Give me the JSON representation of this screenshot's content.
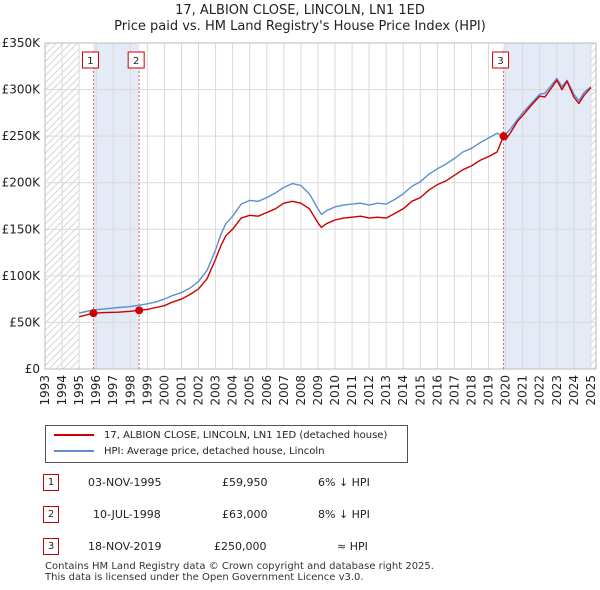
{
  "titles": {
    "line1": "17, ALBION CLOSE, LINCOLN, LN1 1ED",
    "line2": "Price paid vs. HM Land Registry's House Price Index (HPI)"
  },
  "chart_data": {
    "type": "line",
    "title": "17, ALBION CLOSE, LINCOLN, LN1 1ED — Price paid vs. HM Land Registry's House Price Index (HPI)",
    "xlabel": "",
    "ylabel": "",
    "xlim": [
      1993,
      2025
    ],
    "ylim": [
      0,
      350000
    ],
    "x_ticks": [
      1993,
      1994,
      1995,
      1996,
      1997,
      1998,
      1999,
      2000,
      2001,
      2002,
      2003,
      2004,
      2005,
      2006,
      2007,
      2008,
      2009,
      2010,
      2011,
      2012,
      2013,
      2014,
      2015,
      2016,
      2017,
      2018,
      2019,
      2020,
      2021,
      2022,
      2023,
      2024,
      2025
    ],
    "y_ticks": [
      {
        "value": 0,
        "label": "£0"
      },
      {
        "value": 50000,
        "label": "£50K"
      },
      {
        "value": 100000,
        "label": "£100K"
      },
      {
        "value": 150000,
        "label": "£150K"
      },
      {
        "value": 200000,
        "label": "£200K"
      },
      {
        "value": 250000,
        "label": "£250K"
      },
      {
        "value": 300000,
        "label": "£300K"
      },
      {
        "value": 350000,
        "label": "£350K"
      }
    ],
    "grid": true,
    "hatched_ranges": [
      [
        1993,
        1995.0
      ],
      [
        2025.0,
        2025.3
      ]
    ],
    "shaded_ranges": [
      [
        1995.84,
        1998.52
      ],
      [
        2019.88,
        2025.0
      ]
    ],
    "series": [
      {
        "name": "17, ALBION CLOSE, LINCOLN, LN1 1ED (detached house)",
        "color": "#cc0000",
        "x": [
          1995.0,
          1995.84,
          1996.5,
          1997.3,
          1998.0,
          1998.52,
          1999.0,
          1999.5,
          2000.0,
          2000.5,
          2001.0,
          2001.5,
          2002.0,
          2002.5,
          2003.0,
          2003.3,
          2003.6,
          2004.0,
          2004.5,
          2005.0,
          2005.5,
          2006.0,
          2006.5,
          2007.0,
          2007.5,
          2008.0,
          2008.5,
          2009.0,
          2009.2,
          2009.5,
          2010.0,
          2010.5,
          2011.0,
          2011.5,
          2012.0,
          2012.5,
          2013.0,
          2013.5,
          2014.0,
          2014.5,
          2015.0,
          2015.5,
          2016.0,
          2016.5,
          2017.0,
          2017.5,
          2018.0,
          2018.5,
          2019.0,
          2019.5,
          2019.88,
          2020.0,
          2020.3,
          2020.7,
          2021.0,
          2021.5,
          2022.0,
          2022.3,
          2022.7,
          2023.0,
          2023.3,
          2023.6,
          2024.0,
          2024.3,
          2024.6,
          2025.0
        ],
        "y": [
          56000,
          59950,
          60500,
          61000,
          62000,
          63000,
          64000,
          66000,
          68000,
          72000,
          75000,
          80000,
          86000,
          97000,
          118000,
          132000,
          143000,
          150000,
          162000,
          165000,
          164000,
          168000,
          172000,
          178000,
          180000,
          178000,
          172000,
          157000,
          152000,
          156000,
          160000,
          162000,
          163000,
          164000,
          162000,
          163000,
          162000,
          167000,
          172000,
          180000,
          184000,
          192000,
          198000,
          202000,
          208000,
          214000,
          218000,
          224000,
          228000,
          233000,
          250000,
          246000,
          254000,
          266000,
          272000,
          283000,
          293000,
          292000,
          302000,
          310000,
          300000,
          309000,
          292000,
          285000,
          294000,
          302000
        ]
      },
      {
        "name": "HPI: Average price, detached house, Lincoln",
        "color": "#5b8fd4",
        "x": [
          1995.0,
          1995.84,
          1996.5,
          1997.3,
          1998.0,
          1998.52,
          1999.0,
          1999.5,
          2000.0,
          2000.5,
          2001.0,
          2001.5,
          2002.0,
          2002.5,
          2003.0,
          2003.3,
          2003.6,
          2004.0,
          2004.5,
          2005.0,
          2005.5,
          2006.0,
          2006.5,
          2007.0,
          2007.5,
          2008.0,
          2008.5,
          2009.0,
          2009.2,
          2009.5,
          2010.0,
          2010.5,
          2011.0,
          2011.5,
          2012.0,
          2012.5,
          2013.0,
          2013.5,
          2014.0,
          2014.5,
          2015.0,
          2015.5,
          2016.0,
          2016.5,
          2017.0,
          2017.5,
          2018.0,
          2018.5,
          2019.0,
          2019.5,
          2019.88,
          2020.0,
          2020.3,
          2020.7,
          2021.0,
          2021.5,
          2022.0,
          2022.3,
          2022.7,
          2023.0,
          2023.3,
          2023.6,
          2024.0,
          2024.3,
          2024.6,
          2025.0
        ],
        "y": [
          60000,
          63500,
          64500,
          66000,
          67000,
          68500,
          70000,
          72000,
          75000,
          79000,
          82000,
          87000,
          94000,
          106000,
          128000,
          144000,
          156000,
          164000,
          177000,
          181000,
          180000,
          184000,
          189000,
          195000,
          199000,
          197000,
          188000,
          172000,
          166000,
          170000,
          174000,
          176000,
          177000,
          178000,
          176000,
          178000,
          177000,
          182000,
          188000,
          196000,
          201000,
          209000,
          215000,
          220000,
          226000,
          233000,
          237000,
          243000,
          248000,
          253000,
          250000,
          252000,
          258000,
          268000,
          275000,
          285000,
          295000,
          296000,
          305000,
          312000,
          303000,
          310000,
          295000,
          288000,
          297000,
          303000
        ]
      }
    ],
    "markers": [
      {
        "label": "1",
        "x": 1995.84,
        "y": 59950
      },
      {
        "label": "2",
        "x": 1998.52,
        "y": 63000
      },
      {
        "label": "3",
        "x": 2019.88,
        "y": 250000
      }
    ]
  },
  "legend": {
    "series1": "17, ALBION CLOSE, LINCOLN, LN1 1ED (detached house)",
    "series2": "HPI: Average price, detached house, Lincoln"
  },
  "colors": {
    "price_line": "#cc0000",
    "hpi_line": "#5b8fd4",
    "shade": "#dde6f5",
    "grid": "#d9d9d9"
  },
  "transactions": [
    {
      "num": "1",
      "date": "03-NOV-1995",
      "price": "£59,950",
      "hpi": "6% ↓ HPI"
    },
    {
      "num": "2",
      "date": "10-JUL-1998",
      "price": "£63,000",
      "hpi": "8% ↓ HPI"
    },
    {
      "num": "3",
      "date": "18-NOV-2019",
      "price": "£250,000",
      "hpi": "≈ HPI"
    }
  ],
  "footer": {
    "line1": "Contains HM Land Registry data © Crown copyright and database right 2025.",
    "line2": "This data is licensed under the Open Government Licence v3.0."
  }
}
